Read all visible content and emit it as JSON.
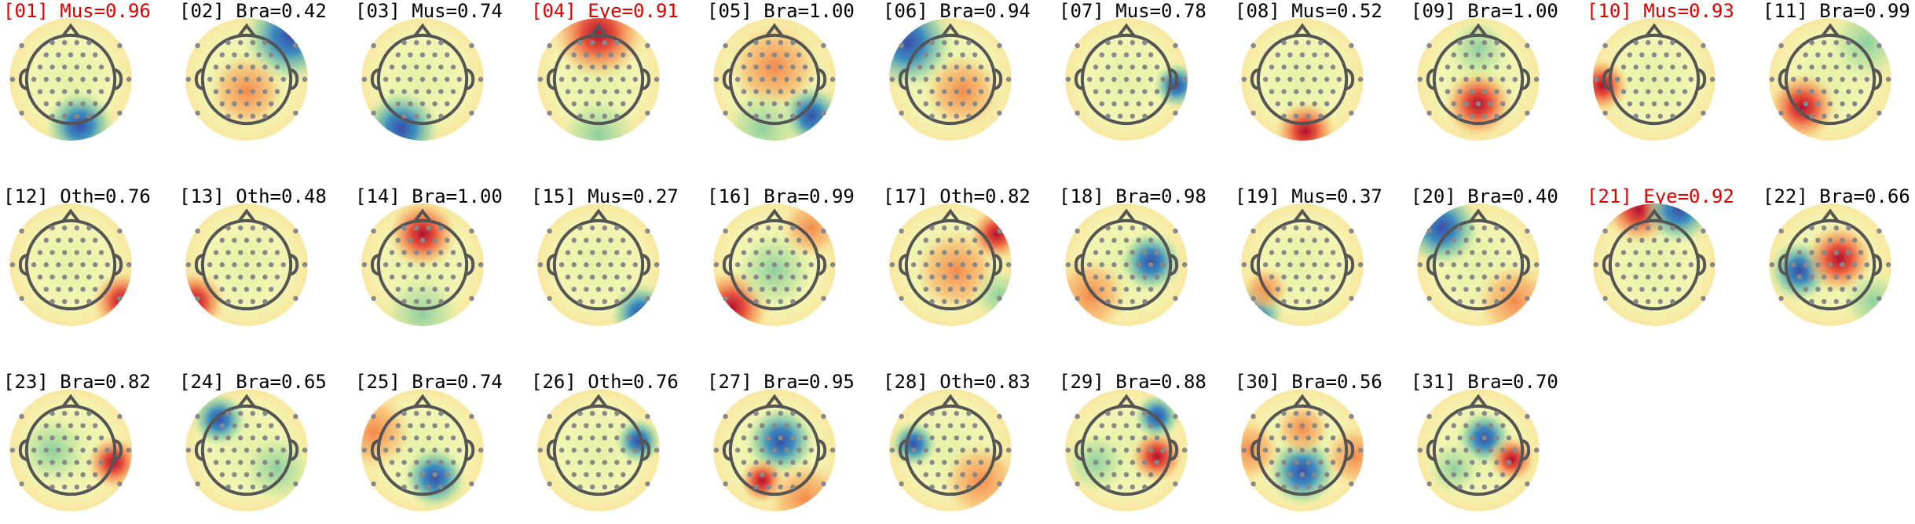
{
  "panels": [
    {
      "label": "[01] Mus=0.96",
      "color": "#e00000"
    },
    {
      "label": "[02] Bra=0.42",
      "color": "#000000"
    },
    {
      "label": "[03] Mus=0.74",
      "color": "#000000"
    },
    {
      "label": "[04] Eye=0.91",
      "color": "#e00000"
    },
    {
      "label": "[05] Bra=1.00",
      "color": "#000000"
    },
    {
      "label": "[06] Bra=0.94",
      "color": "#000000"
    },
    {
      "label": "[07] Mus=0.78",
      "color": "#000000"
    },
    {
      "label": "[08] Mus=0.52",
      "color": "#000000"
    },
    {
      "label": "[09] Bra=1.00",
      "color": "#000000"
    },
    {
      "label": "[10] Mus=0.93",
      "color": "#e00000"
    },
    {
      "label": "[11] Bra=0.99",
      "color": "#000000"
    },
    {
      "label": "[12] Oth=0.76",
      "color": "#000000"
    },
    {
      "label": "[13] Oth=0.48",
      "color": "#000000"
    },
    {
      "label": "[14] Bra=1.00",
      "color": "#000000"
    },
    {
      "label": "[15] Mus=0.27",
      "color": "#000000"
    },
    {
      "label": "[16] Bra=0.99",
      "color": "#000000"
    },
    {
      "label": "[17] Oth=0.82",
      "color": "#000000"
    },
    {
      "label": "[18] Bra=0.98",
      "color": "#000000"
    },
    {
      "label": "[19] Mus=0.37",
      "color": "#000000"
    },
    {
      "label": "[20] Bra=0.40",
      "color": "#000000"
    },
    {
      "label": "[21] Eye=0.92",
      "color": "#e00000"
    },
    {
      "label": "[22] Bra=0.66",
      "color": "#000000"
    },
    {
      "label": "[23] Bra=0.82",
      "color": "#000000"
    },
    {
      "label": "[24] Bra=0.65",
      "color": "#000000"
    },
    {
      "label": "[25] Bra=0.74",
      "color": "#000000"
    },
    {
      "label": "[26] Oth=0.76",
      "color": "#000000"
    },
    {
      "label": "[27] Bra=0.95",
      "color": "#000000"
    },
    {
      "label": "[28] Oth=0.83",
      "color": "#000000"
    },
    {
      "label": "[29] Bra=0.88",
      "color": "#000000"
    },
    {
      "label": "[30] Bra=0.56",
      "color": "#000000"
    },
    {
      "label": "[31] Bra=0.70",
      "color": "#000000"
    }
  ]
}
